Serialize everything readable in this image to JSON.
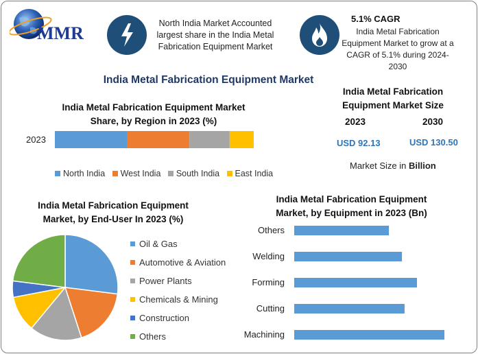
{
  "header": {
    "logo_text": "MMR",
    "info1": "North India Market Accounted largest share in the India Metal Fabrication Equipment Market",
    "info2_title": "5.1% CAGR",
    "info2": "India Metal Fabrication Equipment Market to grow at a CAGR of 5.1% during 2024-2030",
    "info1_icon": "lightning-bolt-icon",
    "info2_icon": "flame-icon"
  },
  "main_title": "India Metal Fabrication Equipment Market",
  "market_size": {
    "title": "India Metal Fabrication Equipment Market Size",
    "year1": "2023",
    "year2": "2030",
    "value1": "USD 92.13",
    "value2": "USD 130.50",
    "note_prefix": "Market Size in ",
    "note_unit": "Billion"
  },
  "colors": {
    "blue": "#5b9bd5",
    "orange": "#ed7d31",
    "gray": "#a5a5a5",
    "yellow": "#ffc000",
    "darkblue": "#4472c4",
    "green": "#70ad47",
    "navy": "#1f4e79",
    "title": "#1f3864"
  },
  "chart_data": [
    {
      "type": "bar",
      "orientation": "horizontal-stacked",
      "title": "India Metal Fabrication Equipment Market Share, by Region in 2023 (%)",
      "categories": [
        "2023"
      ],
      "series": [
        {
          "name": "North India",
          "values": [
            36
          ],
          "color": "#5b9bd5"
        },
        {
          "name": "West India",
          "values": [
            31
          ],
          "color": "#ed7d31"
        },
        {
          "name": "South India",
          "values": [
            20
          ],
          "color": "#a5a5a5"
        },
        {
          "name": "East India",
          "values": [
            12
          ],
          "color": "#ffc000"
        }
      ],
      "legend": "bottom"
    },
    {
      "type": "pie",
      "title": "India Metal Fabrication Equipment Market, by End-User In 2023 (%)",
      "labels": [
        "Oil & Gas",
        "Automotive & Aviation",
        "Power Plants",
        "Chemicals & Mining",
        "Construction",
        "Others"
      ],
      "values": [
        27,
        18,
        16,
        11,
        5,
        23
      ],
      "colors": [
        "#5b9bd5",
        "#ed7d31",
        "#a5a5a5",
        "#ffc000",
        "#4472c4",
        "#70ad47"
      ],
      "legend": "right"
    },
    {
      "type": "bar",
      "orientation": "horizontal",
      "title": "India Metal Fabrication Equipment Market, by Equipment in 2023 (Bn)",
      "categories": [
        "Others",
        "Welding",
        "Forming",
        "Cutting",
        "Machining"
      ],
      "values": [
        14.5,
        16.5,
        18.8,
        16.9,
        23
      ],
      "xlim": [
        0,
        25
      ],
      "color": "#5b9bd5"
    }
  ]
}
